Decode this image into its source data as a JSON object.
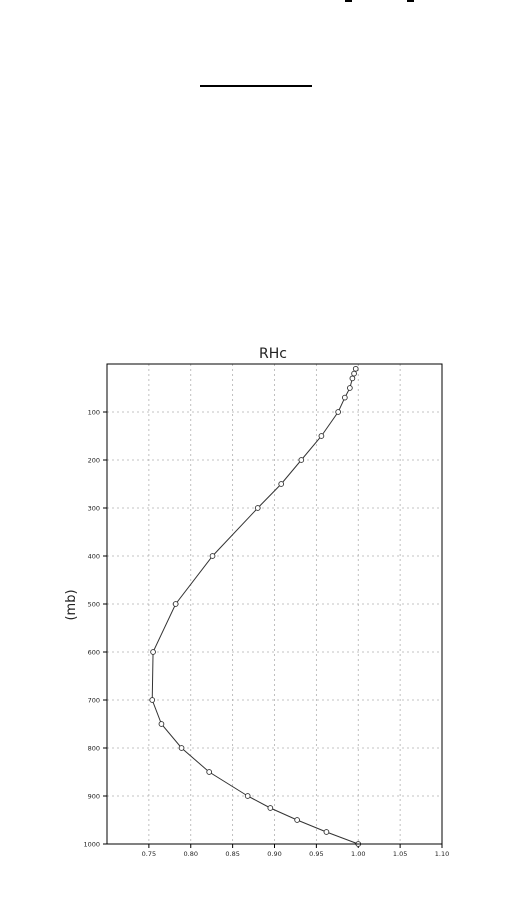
{
  "chart_data": {
    "type": "line",
    "title": "RHc",
    "xlabel": "",
    "ylabel": "(mb)",
    "xlim": [
      0.7,
      1.1
    ],
    "ylim": [
      0,
      1000
    ],
    "y_inverted": true,
    "grid": true,
    "x_ticks": [
      "0.75",
      "0.80",
      "0.85",
      "0.90",
      "0.95",
      "1.00",
      "1.05",
      "1.10"
    ],
    "y_ticks": [
      "100",
      "200",
      "300",
      "400",
      "500",
      "600",
      "700",
      "800",
      "900",
      "1000"
    ],
    "series": [
      {
        "marker": "circle-open",
        "color": "#333333",
        "x": [
          1.0,
          0.962,
          0.927,
          0.895,
          0.868,
          0.822,
          0.789,
          0.765,
          0.754,
          0.755,
          0.782,
          0.826,
          0.88,
          0.908,
          0.932,
          0.956,
          0.976,
          0.984,
          0.99,
          0.993,
          0.995,
          0.997
        ],
        "y": [
          1000,
          975,
          950,
          925,
          900,
          850,
          800,
          750,
          700,
          600,
          500,
          400,
          300,
          250,
          200,
          150,
          100,
          70,
          50,
          30,
          20,
          10
        ]
      }
    ]
  }
}
